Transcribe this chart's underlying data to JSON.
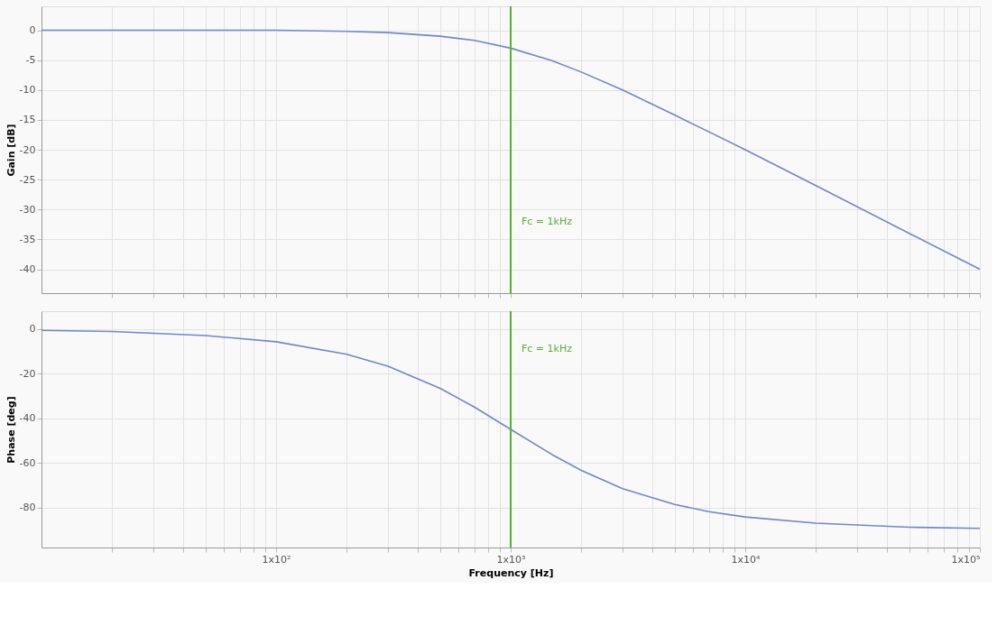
{
  "chart_data": [
    {
      "type": "line",
      "ylabel": "Gain [dB]",
      "x": [
        10,
        20,
        50,
        100,
        200,
        300,
        500,
        700,
        1000,
        1500,
        2000,
        3000,
        5000,
        7000,
        10000,
        20000,
        50000,
        100000
      ],
      "series": [
        {
          "color": "#7088c4",
          "values": [
            0,
            0,
            0,
            0,
            -0.2,
            -0.4,
            -1.0,
            -1.7,
            -3.0,
            -5.1,
            -7.0,
            -10.0,
            -14.2,
            -17.0,
            -20.0,
            -26.0,
            -34.0,
            -40.0
          ]
        }
      ],
      "log": "x",
      "xlim": [
        10,
        100000
      ],
      "xticks": [
        {
          "value": 20,
          "label": null
        },
        {
          "value": 30,
          "label": null
        },
        {
          "value": 40,
          "label": null
        },
        {
          "value": 50,
          "label": null
        },
        {
          "value": 60,
          "label": null
        },
        {
          "value": 70,
          "label": null
        },
        {
          "value": 80,
          "label": null
        },
        {
          "value": 90,
          "label": null
        },
        {
          "value": 100,
          "label": null
        },
        {
          "value": 200,
          "label": null
        },
        {
          "value": 300,
          "label": null
        },
        {
          "value": 400,
          "label": null
        },
        {
          "value": 500,
          "label": null
        },
        {
          "value": 600,
          "label": null
        },
        {
          "value": 700,
          "label": null
        },
        {
          "value": 800,
          "label": null
        },
        {
          "value": 900,
          "label": null
        },
        {
          "value": 1000,
          "label": null
        },
        {
          "value": 2000,
          "label": null
        },
        {
          "value": 3000,
          "label": null
        },
        {
          "value": 4000,
          "label": null
        },
        {
          "value": 5000,
          "label": null
        },
        {
          "value": 6000,
          "label": null
        },
        {
          "value": 7000,
          "label": null
        },
        {
          "value": 8000,
          "label": null
        },
        {
          "value": 9000,
          "label": null
        },
        {
          "value": 10000,
          "label": null
        },
        {
          "value": 20000,
          "label": null
        },
        {
          "value": 30000,
          "label": null
        },
        {
          "value": 40000,
          "label": null
        },
        {
          "value": 50000,
          "label": null
        },
        {
          "value": 60000,
          "label": null
        },
        {
          "value": 70000,
          "label": null
        },
        {
          "value": 80000,
          "label": null
        },
        {
          "value": 90000,
          "label": null
        },
        {
          "value": 100000,
          "label": null
        }
      ],
      "ylim": [
        -44,
        4
      ],
      "yticks": [
        0,
        -5,
        -10,
        -15,
        -20,
        -25,
        -30,
        -35,
        -40
      ],
      "ref_lines": [
        {
          "axis": "x",
          "value": 1000,
          "color": "#5aad3c"
        }
      ],
      "annotations": [
        {
          "text": "Fc = 1kHz",
          "x": 1000,
          "y": -32
        }
      ],
      "grid": true,
      "tick_labels": "y"
    },
    {
      "type": "line",
      "ylabel": "Phase [deg]",
      "xlabel": "Frequency [Hz]",
      "x": [
        10,
        20,
        50,
        100,
        200,
        300,
        500,
        700,
        1000,
        1500,
        2000,
        3000,
        5000,
        7000,
        10000,
        20000,
        50000,
        100000
      ],
      "series": [
        {
          "color": "#7088c4",
          "values": [
            -0.6,
            -1.1,
            -2.9,
            -5.7,
            -11.3,
            -16.7,
            -26.6,
            -35.0,
            -45.0,
            -56.3,
            -63.4,
            -71.6,
            -78.7,
            -81.9,
            -84.3,
            -87.1,
            -88.9,
            -89.4
          ]
        }
      ],
      "log": "x",
      "xlim": [
        10,
        100000
      ],
      "xticks": [
        {
          "value": 20,
          "label": null
        },
        {
          "value": 30,
          "label": null
        },
        {
          "value": 40,
          "label": null
        },
        {
          "value": 50,
          "label": null
        },
        {
          "value": 60,
          "label": null
        },
        {
          "value": 70,
          "label": null
        },
        {
          "value": 80,
          "label": null
        },
        {
          "value": 90,
          "label": null
        },
        {
          "value": 100,
          "label": "1x10²"
        },
        {
          "value": 200,
          "label": null
        },
        {
          "value": 300,
          "label": null
        },
        {
          "value": 400,
          "label": null
        },
        {
          "value": 500,
          "label": null
        },
        {
          "value": 600,
          "label": null
        },
        {
          "value": 700,
          "label": null
        },
        {
          "value": 800,
          "label": null
        },
        {
          "value": 900,
          "label": null
        },
        {
          "value": 1000,
          "label": "1x10³"
        },
        {
          "value": 2000,
          "label": null
        },
        {
          "value": 3000,
          "label": null
        },
        {
          "value": 4000,
          "label": null
        },
        {
          "value": 5000,
          "label": null
        },
        {
          "value": 6000,
          "label": null
        },
        {
          "value": 7000,
          "label": null
        },
        {
          "value": 8000,
          "label": null
        },
        {
          "value": 9000,
          "label": null
        },
        {
          "value": 10000,
          "label": "1x10⁴"
        },
        {
          "value": 20000,
          "label": null
        },
        {
          "value": 30000,
          "label": null
        },
        {
          "value": 40000,
          "label": null
        },
        {
          "value": 50000,
          "label": null
        },
        {
          "value": 60000,
          "label": null
        },
        {
          "value": 70000,
          "label": null
        },
        {
          "value": 80000,
          "label": null
        },
        {
          "value": 90000,
          "label": null
        },
        {
          "value": 100000,
          "label": "1x10⁵"
        }
      ],
      "ylim": [
        -98,
        8
      ],
      "yticks": [
        0,
        -20,
        -40,
        -60,
        -80
      ],
      "ref_lines": [
        {
          "axis": "x",
          "value": 1000,
          "color": "#5aad3c"
        }
      ],
      "annotations": [
        {
          "text": "Fc = 1kHz",
          "x": 1000,
          "y": -9
        }
      ],
      "grid": true
    }
  ]
}
